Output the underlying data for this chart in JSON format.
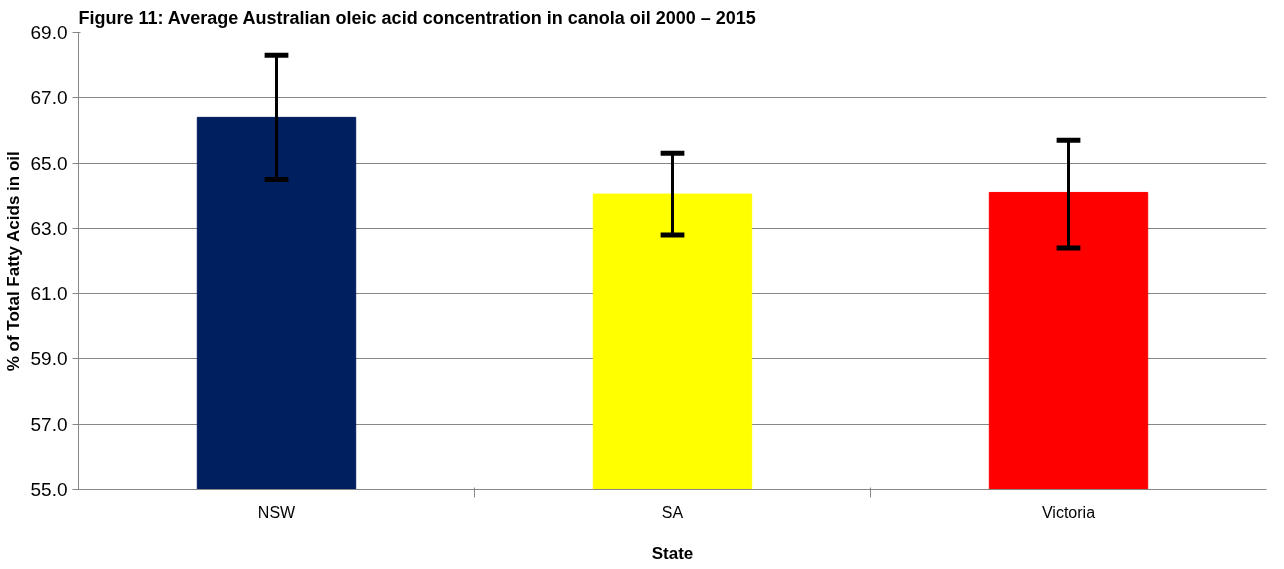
{
  "chart_data": {
    "type": "bar",
    "title": "Figure 11: Average Australian oleic acid concentration in canola oil 2000 – 2015",
    "xlabel": "State",
    "ylabel": "% of Total Fatty Acids in oil",
    "categories": [
      "NSW",
      "SA",
      "Victoria"
    ],
    "values": [
      66.4,
      64.05,
      64.1
    ],
    "colors": [
      "#001f5f",
      "#ffff00",
      "#ff0000"
    ],
    "errors": [
      [
        64.5,
        68.3
      ],
      [
        62.8,
        65.3
      ],
      [
        62.4,
        65.7
      ]
    ],
    "ylim": [
      55,
      69
    ],
    "yticks": [
      {
        "value": 55,
        "label": "55.0"
      },
      {
        "value": 57,
        "label": "57.0"
      },
      {
        "value": 59,
        "label": "59.0"
      },
      {
        "value": 61,
        "label": "61.0"
      },
      {
        "value": 63,
        "label": "63.0"
      },
      {
        "value": 65,
        "label": "65.0"
      },
      {
        "value": 67,
        "label": "67.0"
      },
      {
        "value": 69,
        "label": "69.0"
      }
    ],
    "grid": "y"
  }
}
